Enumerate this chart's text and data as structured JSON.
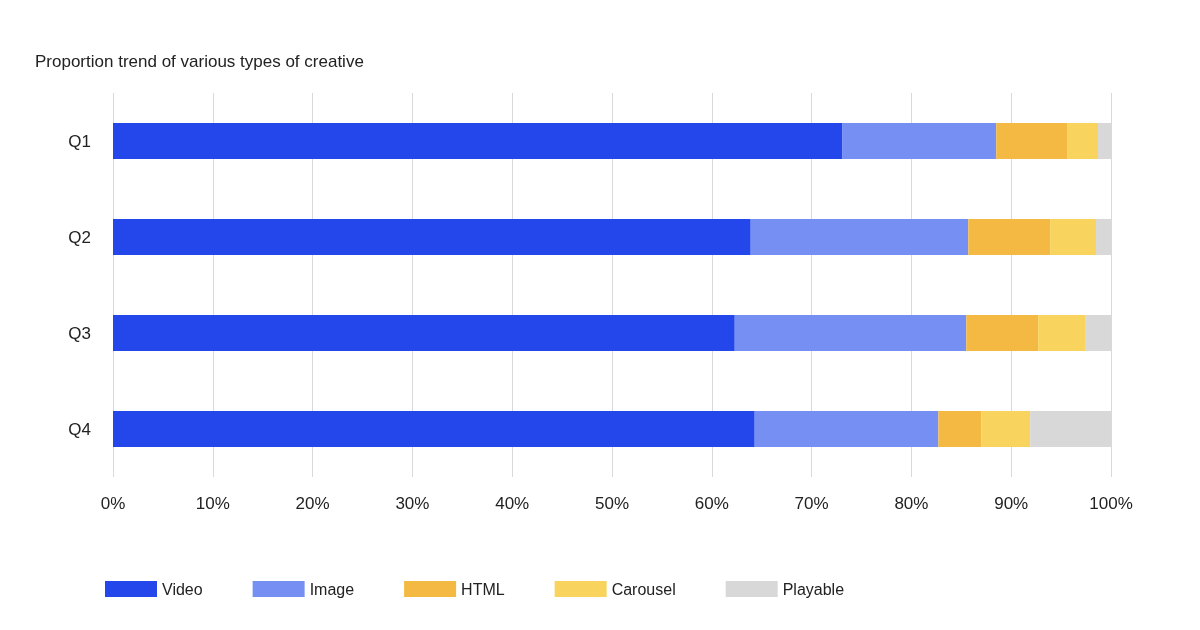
{
  "chart_data": {
    "type": "bar",
    "orientation": "horizontal",
    "stacked": true,
    "title": "Proportion trend of various types of creative",
    "categories": [
      "Q1",
      "Q2",
      "Q3",
      "Q4"
    ],
    "series": [
      {
        "name": "Video",
        "color": "#2447ec",
        "values": [
          73.1,
          63.9,
          62.3,
          64.3
        ]
      },
      {
        "name": "Image",
        "color": "#7590f2",
        "values": [
          15.4,
          21.8,
          23.2,
          18.4
        ]
      },
      {
        "name": "HTML",
        "color": "#f4b942",
        "values": [
          7.1,
          8.2,
          7.2,
          4.3
        ]
      },
      {
        "name": "Carousel",
        "color": "#f8d35e",
        "values": [
          3.1,
          4.6,
          4.7,
          4.9
        ]
      },
      {
        "name": "Playable",
        "color": "#d8d8d8",
        "values": [
          1.3,
          1.5,
          2.6,
          8.1
        ]
      }
    ],
    "xlim": [
      0,
      100
    ],
    "xticks": [
      {
        "value": 0,
        "label": "0%"
      },
      {
        "value": 10,
        "label": "10%"
      },
      {
        "value": 20,
        "label": "20%"
      },
      {
        "value": 30,
        "label": "30%"
      },
      {
        "value": 40,
        "label": "40%"
      },
      {
        "value": 50,
        "label": "50%"
      },
      {
        "value": 60,
        "label": "60%"
      },
      {
        "value": 70,
        "label": "70%"
      },
      {
        "value": 80,
        "label": "80%"
      },
      {
        "value": 90,
        "label": "90%"
      },
      {
        "value": 100,
        "label": "100%"
      }
    ],
    "grid": "x",
    "legend": "bottom left"
  }
}
